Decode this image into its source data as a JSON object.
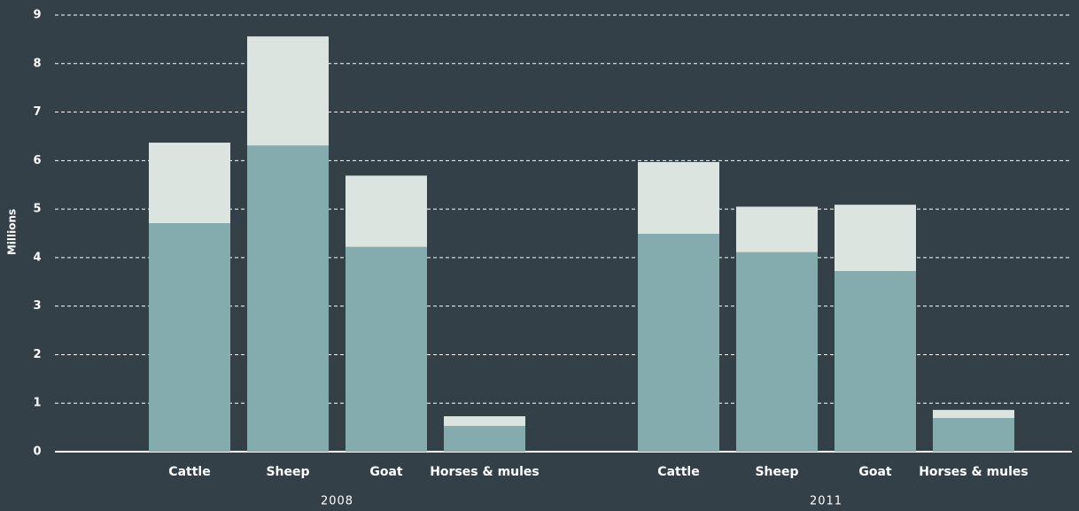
{
  "chart_data": {
    "type": "stacked_bar",
    "y_label": "Millions",
    "groups": [
      "2008",
      "2011"
    ],
    "categories": [
      "Cattle",
      "Sheep",
      "Goat",
      "Horses & mules",
      "Cattle",
      "Sheep",
      "Goat",
      "Horses & mules"
    ],
    "series": [
      {
        "color": "#84abae",
        "values": [
          4.71,
          6.31,
          4.22,
          0.53,
          4.49,
          4.11,
          3.72,
          0.69
        ]
      },
      {
        "color": "#dce4e0",
        "values": [
          1.66,
          2.25,
          1.47,
          0.2,
          1.48,
          0.94,
          1.37,
          0.17
        ]
      }
    ],
    "ylim": [
      0,
      9
    ],
    "yticks": [
      0,
      1,
      2,
      3,
      4,
      5,
      6,
      7,
      8,
      9
    ],
    "grid": true
  }
}
